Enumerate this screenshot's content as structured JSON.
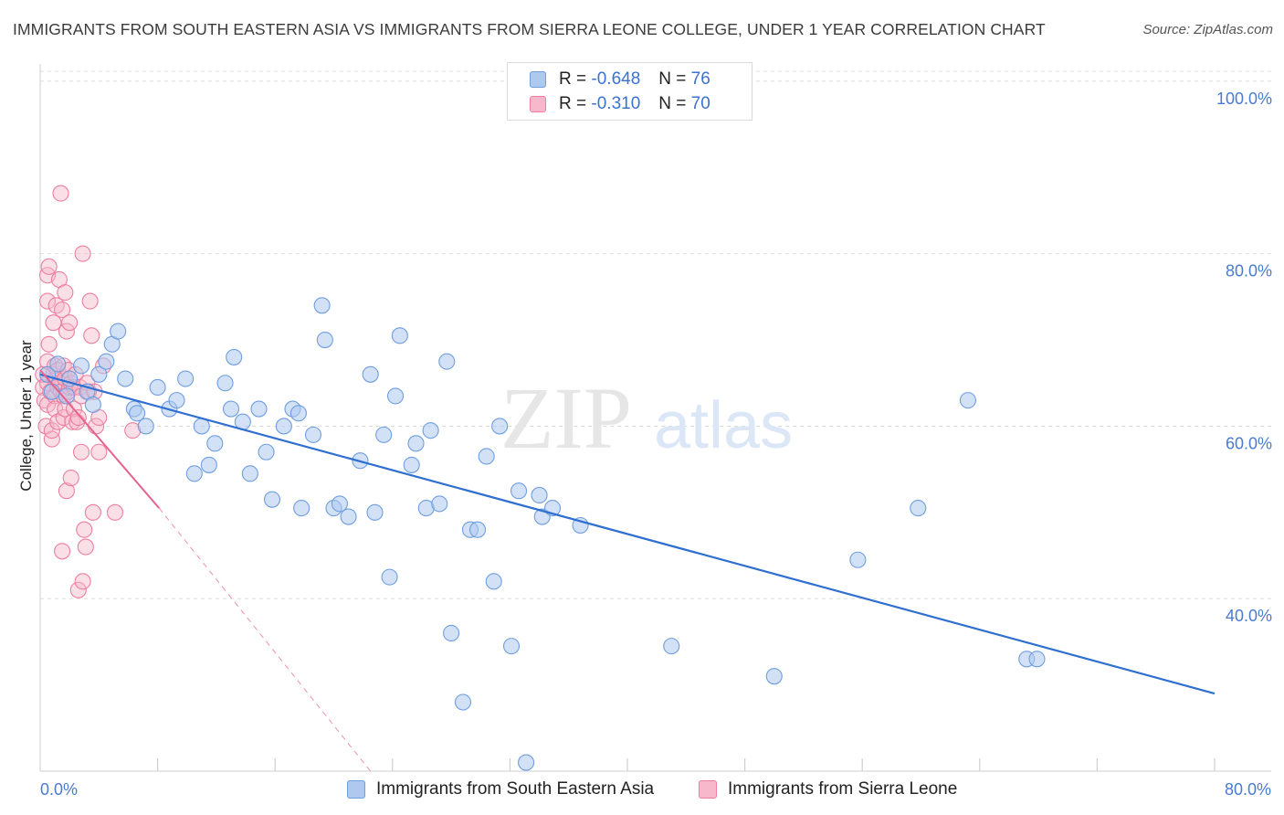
{
  "header": {
    "title": "IMMIGRANTS FROM SOUTH EASTERN ASIA VS IMMIGRANTS FROM SIERRA LEONE COLLEGE, UNDER 1 YEAR CORRELATION CHART",
    "source": "Source: ZipAtlas.com"
  },
  "watermark": {
    "zip": "ZIP",
    "atlas": "atlas"
  },
  "legend": {
    "rows": [
      {
        "r_label": "R = ",
        "r_value": "-0.648",
        "n_label": "N = ",
        "n_value": "76"
      },
      {
        "r_label": "R = ",
        "r_value": "-0.310",
        "n_label": "N = ",
        "n_value": "70"
      }
    ]
  },
  "colors": {
    "blue_fill": "#aec8ee",
    "blue_stroke": "#6f9ee0",
    "blue_line": "#2f6fd0",
    "pink_fill": "#f6b8ca",
    "pink_stroke": "#ec7fa0",
    "pink_line": "#e5628c",
    "grid": "#dddddd",
    "tick_text": "#4a7bd0"
  },
  "chart_data": {
    "type": "scatter",
    "title": "IMMIGRANTS FROM SOUTH EASTERN ASIA VS IMMIGRANTS FROM SIERRA LEONE COLLEGE, UNDER 1 YEAR CORRELATION CHART",
    "xlabel": "",
    "ylabel": "College, Under 1 year",
    "xlim": [
      0,
      80
    ],
    "ylim": [
      20,
      102
    ],
    "x_tick_labels": [
      "0.0%",
      "80.0%"
    ],
    "y_ticks": [
      40,
      60,
      80,
      100
    ],
    "y_tick_labels": [
      "40.0%",
      "60.0%",
      "80.0%",
      "100.0%"
    ],
    "grid": true,
    "legend_position": "top-center",
    "series": [
      {
        "name": "Immigrants from South Eastern Asia",
        "color": "blue",
        "r": -0.648,
        "n": 76,
        "trend": {
          "x": [
            0,
            80
          ],
          "y": [
            66.0,
            29.0
          ],
          "dashed_extension": false
        },
        "points": [
          [
            0.5,
            66.0
          ],
          [
            1.2,
            67.2
          ],
          [
            2.0,
            65.5
          ],
          [
            2.8,
            67.0
          ],
          [
            3.2,
            64.0
          ],
          [
            4.0,
            66.0
          ],
          [
            4.5,
            67.5
          ],
          [
            4.9,
            69.5
          ],
          [
            5.3,
            71.0
          ],
          [
            5.8,
            65.5
          ],
          [
            6.4,
            62.0
          ],
          [
            6.6,
            61.5
          ],
          [
            7.2,
            60.0
          ],
          [
            8.0,
            64.5
          ],
          [
            8.8,
            62.0
          ],
          [
            9.3,
            63.0
          ],
          [
            9.9,
            65.5
          ],
          [
            10.5,
            54.5
          ],
          [
            11.0,
            60.0
          ],
          [
            11.5,
            55.5
          ],
          [
            11.9,
            58.0
          ],
          [
            12.6,
            65.0
          ],
          [
            13.0,
            62.0
          ],
          [
            13.2,
            68.0
          ],
          [
            13.8,
            60.5
          ],
          [
            14.3,
            54.5
          ],
          [
            14.9,
            62.0
          ],
          [
            15.4,
            57.0
          ],
          [
            15.8,
            51.5
          ],
          [
            16.6,
            60.0
          ],
          [
            17.2,
            62.0
          ],
          [
            17.6,
            61.5
          ],
          [
            17.8,
            50.5
          ],
          [
            18.6,
            59.0
          ],
          [
            19.2,
            74.0
          ],
          [
            19.4,
            70.0
          ],
          [
            20.0,
            50.5
          ],
          [
            20.4,
            51.0
          ],
          [
            21.0,
            49.5
          ],
          [
            21.8,
            56.0
          ],
          [
            22.5,
            66.0
          ],
          [
            22.8,
            50.0
          ],
          [
            23.4,
            59.0
          ],
          [
            23.8,
            42.5
          ],
          [
            24.2,
            63.5
          ],
          [
            24.5,
            70.5
          ],
          [
            25.3,
            55.5
          ],
          [
            25.6,
            58.0
          ],
          [
            26.3,
            50.5
          ],
          [
            26.6,
            59.5
          ],
          [
            27.2,
            51.0
          ],
          [
            27.7,
            67.5
          ],
          [
            28.0,
            36.0
          ],
          [
            28.8,
            28.0
          ],
          [
            29.3,
            48.0
          ],
          [
            29.8,
            48.0
          ],
          [
            30.4,
            56.5
          ],
          [
            30.9,
            42.0
          ],
          [
            31.3,
            60.0
          ],
          [
            32.1,
            34.5
          ],
          [
            32.6,
            52.5
          ],
          [
            33.1,
            21.0
          ],
          [
            34.0,
            52.0
          ],
          [
            34.2,
            49.5
          ],
          [
            34.9,
            50.5
          ],
          [
            36.8,
            48.5
          ],
          [
            43.0,
            34.5
          ],
          [
            50.0,
            31.0
          ],
          [
            55.7,
            44.5
          ],
          [
            59.8,
            50.5
          ],
          [
            63.2,
            63.0
          ],
          [
            67.2,
            33.0
          ],
          [
            67.9,
            33.0
          ],
          [
            0.8,
            64.0
          ],
          [
            1.8,
            63.5
          ],
          [
            3.6,
            62.5
          ]
        ]
      },
      {
        "name": "Immigrants from Sierra Leone",
        "color": "pink",
        "r": -0.31,
        "n": 70,
        "trend": {
          "x": [
            0,
            8.1
          ],
          "y": [
            66.5,
            50.5
          ],
          "dashed_to": [
            22.5,
            20.0
          ]
        },
        "points": [
          [
            0.2,
            64.5
          ],
          [
            0.2,
            66.0
          ],
          [
            0.3,
            63.0
          ],
          [
            0.4,
            60.0
          ],
          [
            0.5,
            62.5
          ],
          [
            0.5,
            65.0
          ],
          [
            0.5,
            67.5
          ],
          [
            0.5,
            77.5
          ],
          [
            0.5,
            74.5
          ],
          [
            0.6,
            69.5
          ],
          [
            0.6,
            78.5
          ],
          [
            0.7,
            64.0
          ],
          [
            0.8,
            58.5
          ],
          [
            0.8,
            59.5
          ],
          [
            0.9,
            66.0
          ],
          [
            0.9,
            72.0
          ],
          [
            1.0,
            63.5
          ],
          [
            1.0,
            65.5
          ],
          [
            1.0,
            67.0
          ],
          [
            1.0,
            62.0
          ],
          [
            1.1,
            74.0
          ],
          [
            1.2,
            64.5
          ],
          [
            1.2,
            60.5
          ],
          [
            1.2,
            66.5
          ],
          [
            1.3,
            77.0
          ],
          [
            1.3,
            65.0
          ],
          [
            1.4,
            87.0
          ],
          [
            1.4,
            64.0
          ],
          [
            1.5,
            45.5
          ],
          [
            1.5,
            73.5
          ],
          [
            1.6,
            63.5
          ],
          [
            1.6,
            67.0
          ],
          [
            1.6,
            61.0
          ],
          [
            1.7,
            75.5
          ],
          [
            1.7,
            62.0
          ],
          [
            1.7,
            65.5
          ],
          [
            1.8,
            52.5
          ],
          [
            1.8,
            71.0
          ],
          [
            1.9,
            66.5
          ],
          [
            1.9,
            64.0
          ],
          [
            2.0,
            72.0
          ],
          [
            2.0,
            64.5
          ],
          [
            2.1,
            54.0
          ],
          [
            2.1,
            65.0
          ],
          [
            2.2,
            60.5
          ],
          [
            2.3,
            62.0
          ],
          [
            2.3,
            64.5
          ],
          [
            2.4,
            66.0
          ],
          [
            2.5,
            60.5
          ],
          [
            2.6,
            61.0
          ],
          [
            2.6,
            41.0
          ],
          [
            2.7,
            64.5
          ],
          [
            2.8,
            57.0
          ],
          [
            2.8,
            63.5
          ],
          [
            2.9,
            80.0
          ],
          [
            2.9,
            42.0
          ],
          [
            3.0,
            48.0
          ],
          [
            3.1,
            46.0
          ],
          [
            3.2,
            65.0
          ],
          [
            3.3,
            64.0
          ],
          [
            3.4,
            74.5
          ],
          [
            3.5,
            70.5
          ],
          [
            3.6,
            50.0
          ],
          [
            3.7,
            64.0
          ],
          [
            3.8,
            60.0
          ],
          [
            4.0,
            57.0
          ],
          [
            4.0,
            61.0
          ],
          [
            4.3,
            67.0
          ],
          [
            5.1,
            50.0
          ],
          [
            6.3,
            59.5
          ]
        ]
      }
    ]
  },
  "bottom_legend": {
    "items": [
      {
        "label": "Immigrants from South Eastern Asia"
      },
      {
        "label": "Immigrants from Sierra Leone"
      }
    ]
  }
}
